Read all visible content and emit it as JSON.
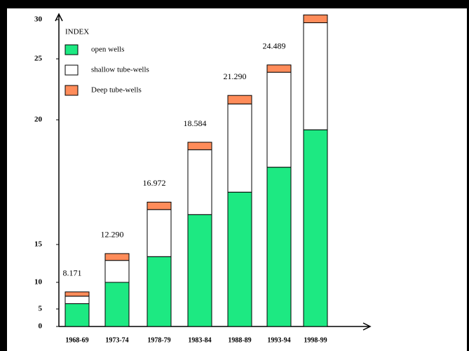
{
  "chart_data": {
    "type": "stacked-bar",
    "categories": [
      "1968-69",
      "1973-74",
      "1978-79",
      "1983-84",
      "1988-89",
      "1993-94",
      "1998-99"
    ],
    "series": [
      {
        "name": "open wells",
        "color": "#1de982",
        "values": [
          6.0,
          10.0,
          13.4,
          16.2,
          17.1,
          18.1,
          19.6
        ]
      },
      {
        "name": "shallow tube-wells",
        "color": "#ffffff",
        "values": [
          1.4,
          2.9,
          3.0,
          2.6,
          4.2,
          5.8,
          10.0
        ]
      },
      {
        "name": "Deep tube-wells",
        "color": "#ff8c5a",
        "values": [
          0.8,
          0.9,
          0.3,
          0.3,
          0.7,
          0.6,
          1.0
        ]
      }
    ],
    "annotations": [
      "8.171",
      "12.290",
      "16.972",
      "18.584",
      "21.290",
      "24.489"
    ],
    "legend_title": "INDEX",
    "legend": "top-left",
    "ylim": [
      0,
      31
    ],
    "yticks": [
      0,
      5,
      10,
      15,
      20,
      25,
      30
    ]
  }
}
